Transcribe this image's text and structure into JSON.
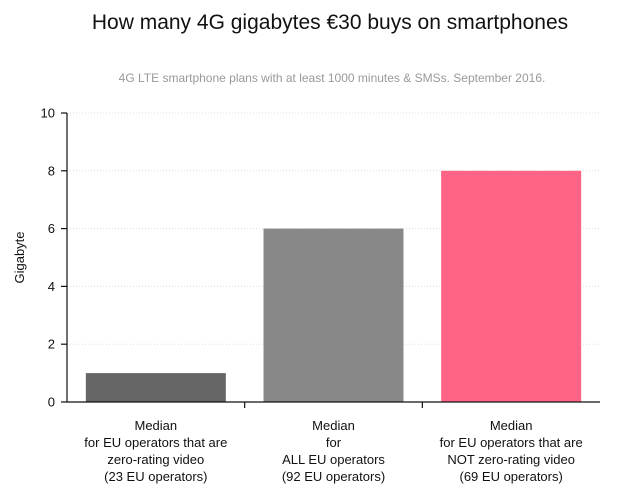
{
  "chart_data": {
    "type": "bar",
    "title": "How many 4G gigabytes €30 buys on smartphones",
    "subtitle": "4G LTE smartphone plans with at least 1000 minutes & SMSs. September 2016.",
    "xlabel": "",
    "ylabel": "Gigabyte",
    "ylim": [
      0,
      10
    ],
    "yticks": [
      0,
      2,
      4,
      6,
      8,
      10
    ],
    "grid": true,
    "categories": [
      [
        "Median",
        "for EU operators that are",
        "zero-rating video",
        "(23 EU operators)"
      ],
      [
        "Median",
        "for",
        "ALL EU operators",
        "(92 EU operators)"
      ],
      [
        "Median",
        "for EU operators that are",
        "NOT zero-rating video",
        "(69 EU operators)"
      ]
    ],
    "values": [
      1,
      6,
      8
    ],
    "colors": [
      "#666666",
      "#888888",
      "#FF6385"
    ]
  }
}
